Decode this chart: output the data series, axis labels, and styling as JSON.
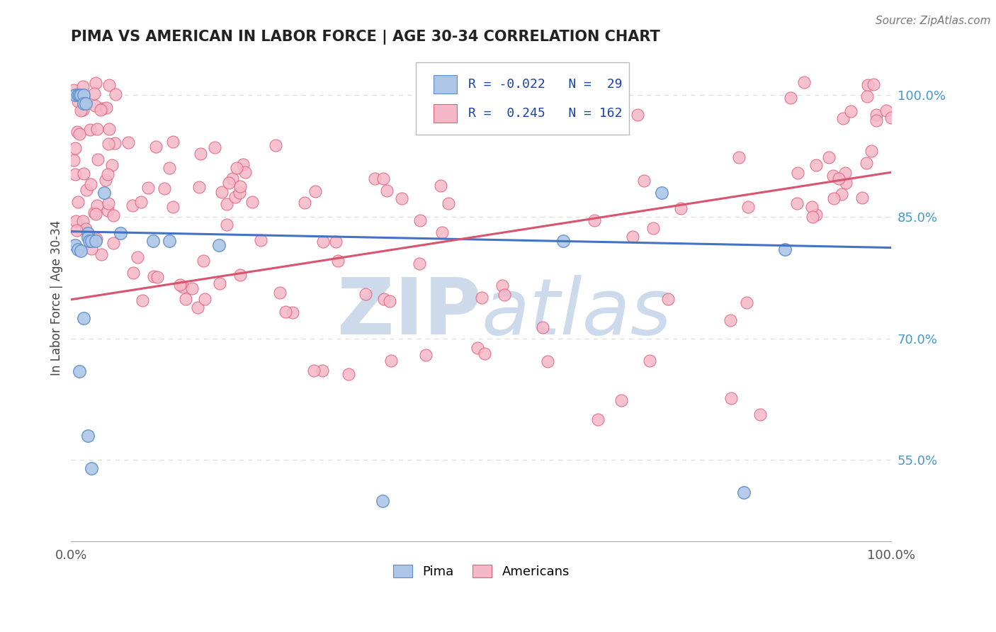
{
  "title": "PIMA VS AMERICAN IN LABOR FORCE | AGE 30-34 CORRELATION CHART",
  "source_text": "Source: ZipAtlas.com",
  "ylabel": "In Labor Force | Age 30-34",
  "legend_label_pima": "Pima",
  "legend_label_americans": "Americans",
  "r_pima": -0.022,
  "n_pima": 29,
  "r_americans": 0.245,
  "n_americans": 162,
  "color_pima_fill": "#adc6e8",
  "color_pima_edge": "#5b8ec9",
  "color_americans_fill": "#f5b8c8",
  "color_americans_edge": "#e0607a",
  "color_line_pima": "#4472c4",
  "color_line_americans": "#d9546e",
  "color_r_value": "#1a44aa",
  "watermark_color": "#ccdaeb",
  "xlim": [
    0.0,
    1.0
  ],
  "ylim": [
    0.45,
    1.05
  ],
  "right_yticks": [
    0.55,
    0.7,
    0.85,
    1.0
  ],
  "right_ytick_labels": [
    "55.0%",
    "70.0%",
    "85.0%",
    "100.0%"
  ],
  "xtick_labels": [
    "0.0%",
    "100.0%"
  ],
  "background_color": "#ffffff",
  "grid_color": "#dddddd",
  "pima_x": [
    0.005,
    0.008,
    0.01,
    0.012,
    0.015,
    0.015,
    0.018,
    0.02,
    0.02,
    0.022,
    0.025,
    0.04,
    0.06,
    0.1,
    0.12,
    0.18,
    0.005,
    0.008,
    0.012,
    0.03,
    0.38,
    0.72,
    0.82,
    0.87,
    0.6,
    0.015,
    0.01,
    0.02,
    0.025
  ],
  "pima_y": [
    1.0,
    1.0,
    1.0,
    1.0,
    1.0,
    0.99,
    0.99,
    0.83,
    0.825,
    0.82,
    0.82,
    0.88,
    0.83,
    0.82,
    0.82,
    0.815,
    0.815,
    0.81,
    0.808,
    0.82,
    0.5,
    0.88,
    0.51,
    0.81,
    0.82,
    0.725,
    0.66,
    0.58,
    0.54
  ],
  "line_pima_x0": 0.0,
  "line_pima_y0": 0.832,
  "line_pima_x1": 1.0,
  "line_pima_y1": 0.812,
  "line_am_x0": 0.0,
  "line_am_y0": 0.748,
  "line_am_x1": 1.0,
  "line_am_y1": 0.905
}
